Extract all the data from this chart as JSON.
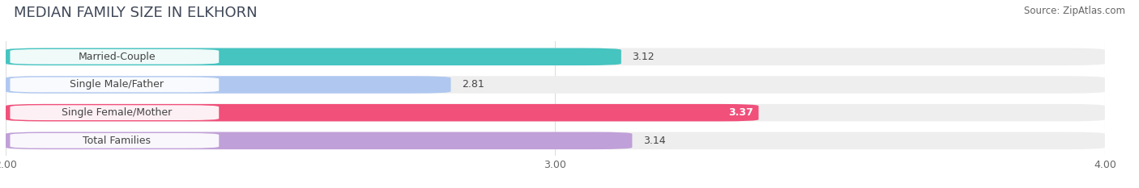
{
  "title": "MEDIAN FAMILY SIZE IN ELKHORN",
  "source": "Source: ZipAtlas.com",
  "categories": [
    "Married-Couple",
    "Single Male/Father",
    "Single Female/Mother",
    "Total Families"
  ],
  "values": [
    3.12,
    2.81,
    3.37,
    3.14
  ],
  "bar_colors": [
    "#45C4C0",
    "#B0C8F0",
    "#F0507A",
    "#C0A0D8"
  ],
  "value_label_colors": [
    "#444444",
    "#444444",
    "#ffffff",
    "#444444"
  ],
  "xlim": [
    2.0,
    4.0
  ],
  "xticks": [
    2.0,
    3.0,
    4.0
  ],
  "xtick_labels": [
    "2.00",
    "3.00",
    "4.00"
  ],
  "background_color": "#ffffff",
  "bar_background_color": "#eeeeee",
  "bar_height": 0.62,
  "bar_gap": 0.38,
  "title_fontsize": 13,
  "label_fontsize": 9,
  "value_fontsize": 9,
  "source_fontsize": 8.5,
  "grid_color": "#dddddd"
}
